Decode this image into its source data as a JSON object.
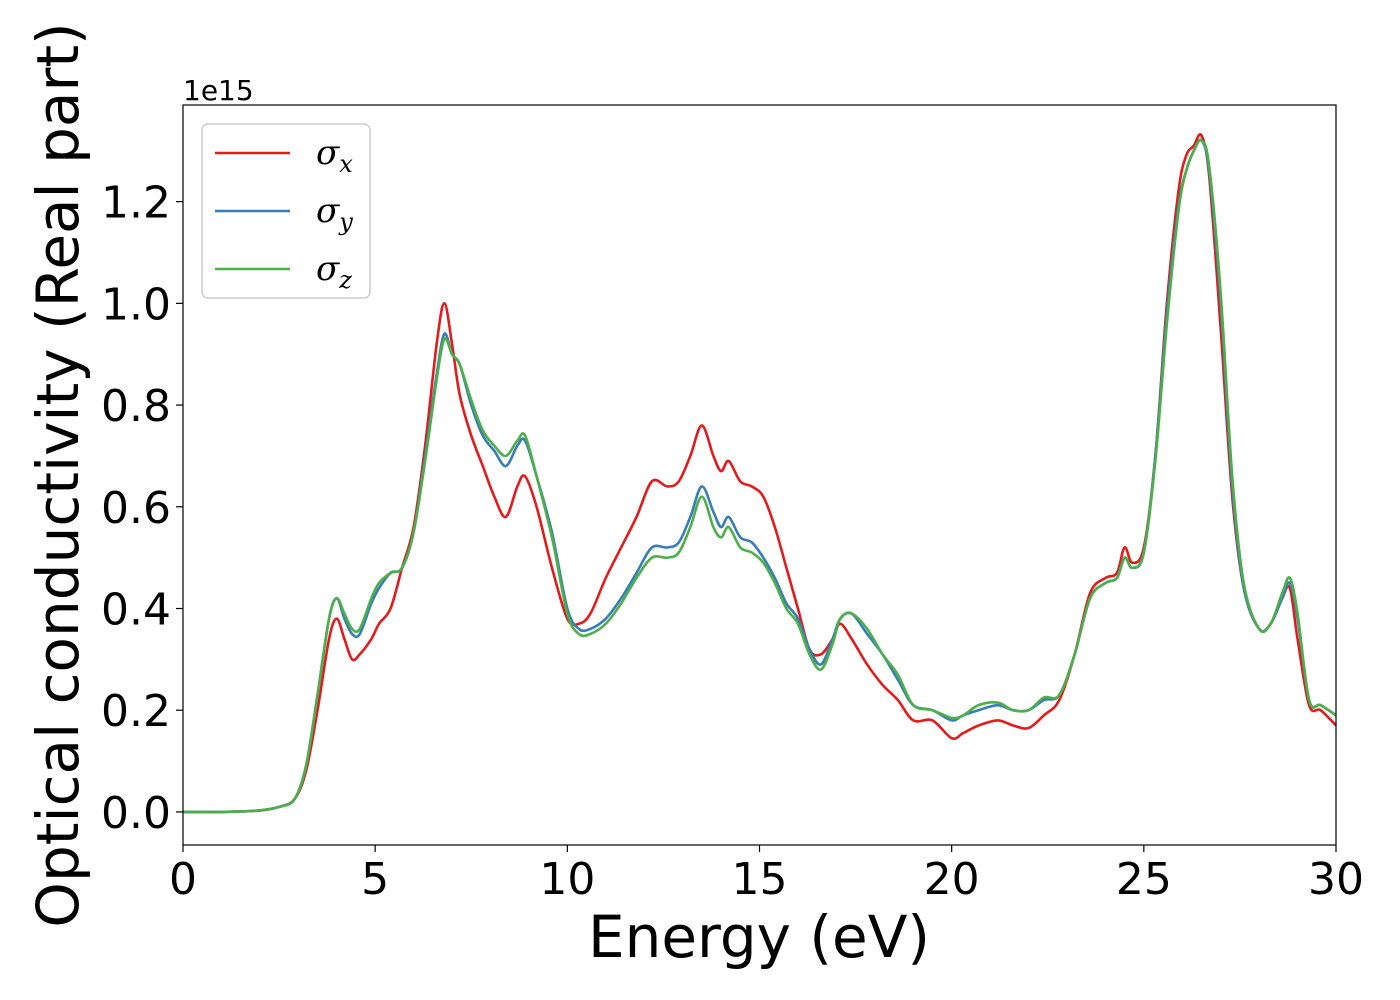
{
  "chart_data": {
    "type": "line",
    "xlabel": "Energy (eV)",
    "ylabel": "Optical conductivity (Real part)",
    "y_offset_text": "1e15",
    "xlim": [
      0,
      30
    ],
    "ylim": [
      -0.065,
      1.39
    ],
    "x_ticks": [
      0,
      5,
      10,
      15,
      20,
      25,
      30
    ],
    "y_ticks": [
      0.0,
      0.2,
      0.4,
      0.6,
      0.8,
      1.0,
      1.2
    ],
    "x_tick_labels": [
      "0",
      "5",
      "10",
      "15",
      "20",
      "25",
      "30"
    ],
    "y_tick_labels": [
      "0.0",
      "0.2",
      "0.4",
      "0.6",
      "0.8",
      "1.0",
      "1.2"
    ],
    "grid": false,
    "legend_placement": "top-left",
    "series": [
      {
        "name": "σx",
        "legend_symbol": "σ",
        "legend_subscript": "x",
        "color": "#e41a1c",
        "x": [
          0,
          1,
          2,
          2.5,
          2.9,
          3.2,
          3.5,
          3.8,
          4.0,
          4.2,
          4.4,
          4.6,
          4.9,
          5.1,
          5.4,
          5.7,
          6.0,
          6.3,
          6.6,
          6.8,
          7.0,
          7.2,
          7.5,
          7.8,
          8.1,
          8.4,
          8.7,
          8.9,
          9.2,
          9.6,
          10.0,
          10.3,
          10.6,
          11.0,
          11.4,
          11.8,
          12.2,
          12.6,
          12.9,
          13.2,
          13.5,
          13.8,
          14.0,
          14.2,
          14.5,
          14.8,
          15.1,
          15.4,
          15.7,
          16.0,
          16.3,
          16.6,
          16.9,
          17.1,
          17.4,
          17.8,
          18.2,
          18.6,
          19.0,
          19.5,
          20.0,
          20.3,
          20.7,
          21.2,
          21.6,
          22.0,
          22.4,
          22.8,
          23.2,
          23.6,
          24.0,
          24.3,
          24.5,
          24.7,
          25.0,
          25.3,
          25.6,
          25.9,
          26.1,
          26.3,
          26.5,
          26.7,
          27.0,
          27.3,
          27.6,
          28.0,
          28.3,
          28.6,
          28.8,
          29.0,
          29.3,
          29.6,
          30.0
        ],
        "y": [
          0.0,
          0.0,
          0.003,
          0.01,
          0.025,
          0.08,
          0.2,
          0.34,
          0.38,
          0.34,
          0.3,
          0.31,
          0.34,
          0.37,
          0.4,
          0.48,
          0.56,
          0.72,
          0.92,
          1.0,
          0.92,
          0.82,
          0.74,
          0.68,
          0.62,
          0.58,
          0.64,
          0.66,
          0.6,
          0.48,
          0.38,
          0.37,
          0.39,
          0.46,
          0.52,
          0.58,
          0.65,
          0.64,
          0.65,
          0.7,
          0.76,
          0.7,
          0.67,
          0.69,
          0.65,
          0.64,
          0.62,
          0.56,
          0.48,
          0.4,
          0.32,
          0.31,
          0.34,
          0.37,
          0.34,
          0.29,
          0.25,
          0.22,
          0.18,
          0.18,
          0.145,
          0.155,
          0.17,
          0.18,
          0.17,
          0.165,
          0.19,
          0.22,
          0.31,
          0.43,
          0.46,
          0.47,
          0.52,
          0.49,
          0.52,
          0.7,
          1.0,
          1.22,
          1.29,
          1.31,
          1.33,
          1.25,
          0.95,
          0.62,
          0.44,
          0.36,
          0.37,
          0.42,
          0.44,
          0.34,
          0.21,
          0.2,
          0.17
        ]
      },
      {
        "name": "σy",
        "legend_symbol": "σ",
        "legend_subscript": "y",
        "color": "#377eb8",
        "x": [
          0,
          1,
          2,
          2.5,
          2.9,
          3.2,
          3.5,
          3.8,
          4.0,
          4.2,
          4.4,
          4.6,
          4.9,
          5.1,
          5.4,
          5.7,
          6.0,
          6.3,
          6.6,
          6.8,
          7.0,
          7.2,
          7.5,
          7.8,
          8.1,
          8.4,
          8.7,
          8.9,
          9.2,
          9.6,
          10.0,
          10.3,
          10.6,
          11.0,
          11.4,
          11.8,
          12.2,
          12.6,
          12.9,
          13.2,
          13.5,
          13.8,
          14.0,
          14.2,
          14.5,
          14.8,
          15.1,
          15.4,
          15.7,
          16.0,
          16.3,
          16.6,
          16.9,
          17.1,
          17.4,
          17.8,
          18.2,
          18.6,
          19.0,
          19.5,
          20.0,
          20.3,
          20.7,
          21.2,
          21.6,
          22.0,
          22.4,
          22.8,
          23.2,
          23.6,
          24.0,
          24.3,
          24.5,
          24.7,
          25.0,
          25.3,
          25.6,
          25.9,
          26.1,
          26.3,
          26.5,
          26.7,
          27.0,
          27.3,
          27.6,
          28.0,
          28.3,
          28.6,
          28.8,
          29.0,
          29.3,
          29.6,
          30.0
        ],
        "y": [
          0.0,
          0.0,
          0.003,
          0.01,
          0.025,
          0.09,
          0.23,
          0.38,
          0.42,
          0.38,
          0.35,
          0.35,
          0.41,
          0.44,
          0.47,
          0.48,
          0.55,
          0.7,
          0.86,
          0.94,
          0.9,
          0.88,
          0.8,
          0.74,
          0.71,
          0.68,
          0.72,
          0.73,
          0.66,
          0.55,
          0.4,
          0.36,
          0.36,
          0.38,
          0.42,
          0.47,
          0.52,
          0.52,
          0.53,
          0.58,
          0.64,
          0.59,
          0.56,
          0.58,
          0.54,
          0.53,
          0.5,
          0.46,
          0.41,
          0.38,
          0.32,
          0.29,
          0.34,
          0.38,
          0.39,
          0.35,
          0.31,
          0.26,
          0.21,
          0.2,
          0.18,
          0.19,
          0.2,
          0.21,
          0.2,
          0.2,
          0.22,
          0.23,
          0.31,
          0.42,
          0.45,
          0.46,
          0.5,
          0.48,
          0.51,
          0.7,
          0.98,
          1.19,
          1.26,
          1.3,
          1.32,
          1.26,
          1.0,
          0.64,
          0.44,
          0.36,
          0.37,
          0.42,
          0.45,
          0.38,
          0.22,
          0.21,
          0.19
        ]
      },
      {
        "name": "σz",
        "legend_symbol": "σ",
        "legend_subscript": "z",
        "color": "#4daf4a",
        "x": [
          0,
          1,
          2,
          2.5,
          2.9,
          3.2,
          3.5,
          3.8,
          4.0,
          4.2,
          4.4,
          4.6,
          4.9,
          5.1,
          5.4,
          5.7,
          6.0,
          6.3,
          6.6,
          6.8,
          7.0,
          7.2,
          7.5,
          7.8,
          8.1,
          8.4,
          8.7,
          8.9,
          9.2,
          9.6,
          10.0,
          10.3,
          10.6,
          11.0,
          11.4,
          11.8,
          12.2,
          12.6,
          12.9,
          13.2,
          13.5,
          13.8,
          14.0,
          14.2,
          14.5,
          14.8,
          15.1,
          15.4,
          15.7,
          16.0,
          16.3,
          16.6,
          16.9,
          17.1,
          17.4,
          17.8,
          18.2,
          18.6,
          19.0,
          19.5,
          20.0,
          20.3,
          20.7,
          21.2,
          21.6,
          22.0,
          22.4,
          22.8,
          23.2,
          23.6,
          24.0,
          24.3,
          24.5,
          24.7,
          25.0,
          25.3,
          25.6,
          25.9,
          26.1,
          26.3,
          26.5,
          26.7,
          27.0,
          27.3,
          27.6,
          28.0,
          28.3,
          28.6,
          28.8,
          29.0,
          29.3,
          29.6,
          30.0
        ],
        "y": [
          0.0,
          0.0,
          0.003,
          0.01,
          0.025,
          0.09,
          0.23,
          0.38,
          0.42,
          0.39,
          0.36,
          0.36,
          0.42,
          0.45,
          0.47,
          0.48,
          0.55,
          0.69,
          0.85,
          0.93,
          0.9,
          0.88,
          0.81,
          0.75,
          0.72,
          0.7,
          0.73,
          0.74,
          0.66,
          0.54,
          0.39,
          0.35,
          0.35,
          0.37,
          0.41,
          0.46,
          0.5,
          0.5,
          0.51,
          0.56,
          0.62,
          0.56,
          0.54,
          0.56,
          0.52,
          0.51,
          0.49,
          0.45,
          0.4,
          0.37,
          0.31,
          0.28,
          0.33,
          0.38,
          0.39,
          0.36,
          0.31,
          0.27,
          0.21,
          0.2,
          0.185,
          0.19,
          0.21,
          0.215,
          0.2,
          0.2,
          0.225,
          0.23,
          0.31,
          0.42,
          0.45,
          0.46,
          0.5,
          0.48,
          0.51,
          0.69,
          0.96,
          1.18,
          1.26,
          1.3,
          1.32,
          1.27,
          1.02,
          0.66,
          0.45,
          0.36,
          0.37,
          0.43,
          0.46,
          0.39,
          0.22,
          0.21,
          0.19
        ]
      }
    ]
  }
}
